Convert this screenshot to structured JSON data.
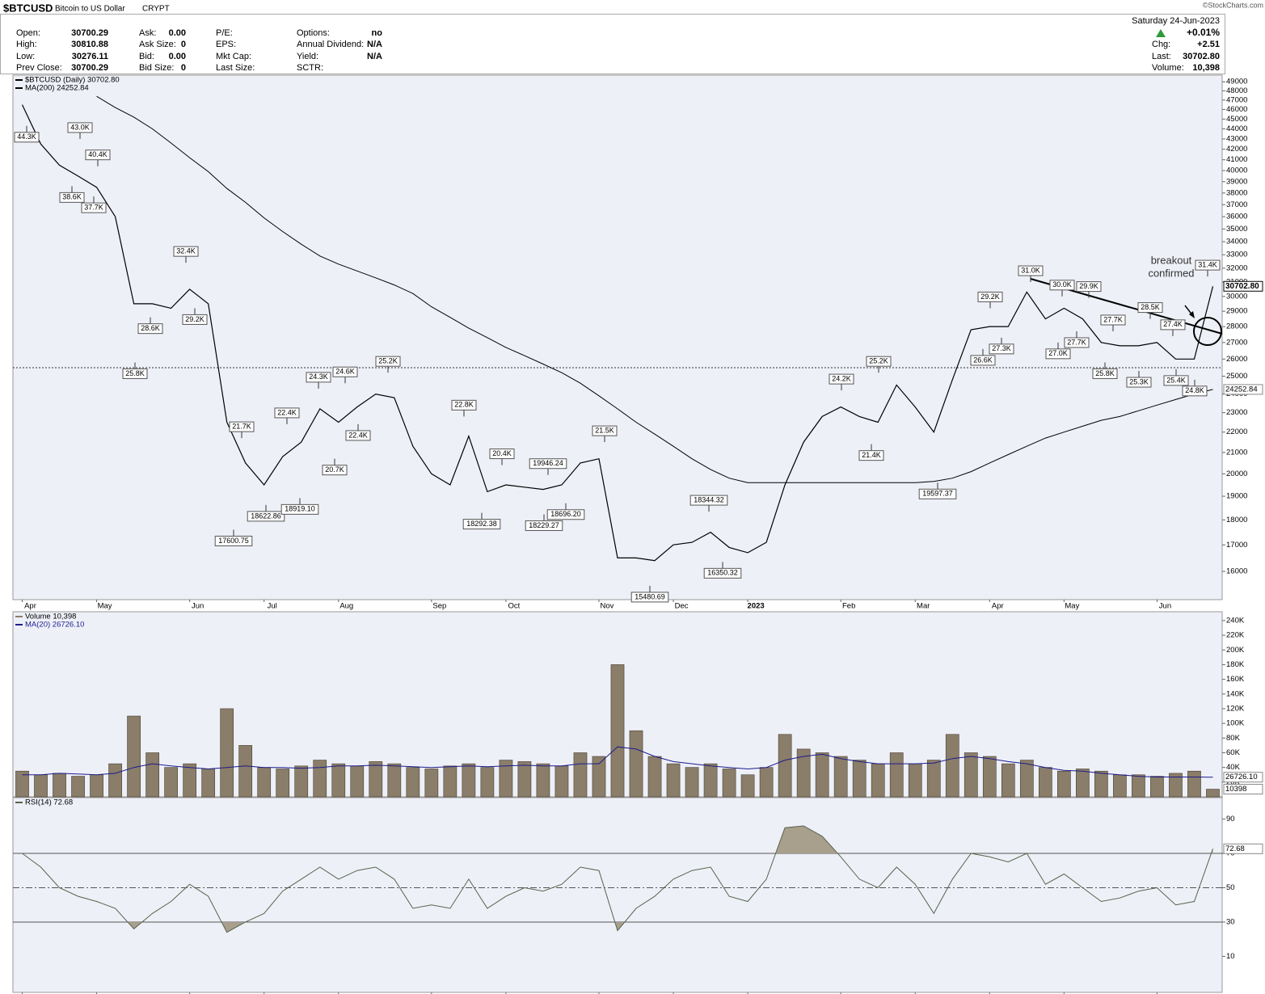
{
  "header": {
    "symbol": "$BTCUSD",
    "name": "Bitcoin to US Dollar",
    "exchange": "CRYPT",
    "columns": [
      [
        {
          "label": "Open:",
          "value": "30700.29"
        },
        {
          "label": "High:",
          "value": "30810.88"
        },
        {
          "label": "Low:",
          "value": "30276.11"
        },
        {
          "label": "Prev Close:",
          "value": "30700.29"
        }
      ],
      [
        {
          "label": "Ask:",
          "value": "0.00"
        },
        {
          "label": "Ask Size:",
          "value": "0"
        },
        {
          "label": "Bid:",
          "value": "0.00"
        },
        {
          "label": "Bid Size:",
          "value": "0"
        }
      ],
      [
        {
          "label": "P/E:"
        },
        {
          "label": "EPS:"
        },
        {
          "label": "Mkt Cap:"
        },
        {
          "label": "Last Size:"
        }
      ],
      [
        {
          "label": "Options:",
          "value": "no"
        },
        {
          "label": "Annual Dividend:",
          "value": "N/A"
        },
        {
          "label": "Yield:",
          "value": "N/A"
        },
        {
          "label": "SCTR:"
        }
      ]
    ],
    "date": "Saturday  24-Jun-2023",
    "change_pct": "+0.01%",
    "right": [
      {
        "label": "Chg:",
        "value": "+2.51"
      },
      {
        "label": "Last:",
        "value": "30702.80"
      },
      {
        "label": "Volume:",
        "value": "10,398"
      }
    ],
    "copyright": "©StockCharts.com"
  },
  "chart_data": [
    {
      "type": "line",
      "log": true,
      "categories": [
        "Apr",
        null,
        null,
        null,
        "May",
        null,
        null,
        null,
        null,
        "Jun",
        null,
        null,
        null,
        "Jul",
        null,
        null,
        null,
        "Aug",
        null,
        null,
        null,
        null,
        "Sep",
        null,
        null,
        null,
        "Oct",
        null,
        null,
        null,
        null,
        "Nov",
        null,
        null,
        null,
        "Dec",
        null,
        null,
        null,
        "2023",
        null,
        null,
        null,
        null,
        "Feb",
        null,
        null,
        null,
        "Mar",
        null,
        null,
        null,
        "Apr",
        null,
        null,
        null,
        "May",
        null,
        null,
        null,
        null,
        "Jun",
        null,
        null,
        null
      ],
      "ylim": [
        15000,
        49750
      ],
      "yticks": [
        16000,
        17000,
        18000,
        19000,
        20000,
        21000,
        22000,
        23000,
        24000,
        25000,
        26000,
        27000,
        28000,
        29000,
        30000,
        31000,
        32000,
        33000,
        34000,
        35000,
        36000,
        37000,
        38000,
        39000,
        40000,
        41000,
        42000,
        43000,
        44000,
        45000,
        46000,
        47000,
        48000,
        49000
      ],
      "series": [
        {
          "name": "$BTCUSD (Daily) 30702.80",
          "color": "#000000",
          "tag": "30702.80",
          "values": [
            46500,
            42500,
            40500,
            39500,
            38500,
            36000,
            29500,
            29500,
            29200,
            30500,
            29500,
            22500,
            20500,
            19500,
            20800,
            21500,
            23200,
            22500,
            23300,
            24000,
            23800,
            21300,
            20000,
            19500,
            21800,
            19200,
            19500,
            19400,
            19300,
            19500,
            20500,
            20700,
            16500,
            16500,
            16400,
            17000,
            17100,
            17500,
            16900,
            16700,
            17100,
            19500,
            21500,
            22800,
            23300,
            22800,
            22500,
            24500,
            23300,
            22000,
            24800,
            27800,
            28000,
            28000,
            30300,
            28500,
            29200,
            28500,
            27000,
            26800,
            26800,
            27000,
            26000,
            26000,
            30702.8
          ]
        },
        {
          "name": "MA(200) 24252.84",
          "color": "#000000",
          "tag": "24252.84",
          "values": [
            null,
            null,
            null,
            null,
            47400,
            46200,
            45200,
            44000,
            42600,
            41200,
            39900,
            38400,
            37200,
            35900,
            34800,
            33800,
            32900,
            32300,
            31800,
            31300,
            30800,
            30200,
            29300,
            28600,
            27900,
            27300,
            26700,
            26200,
            25700,
            25200,
            24600,
            23900,
            23200,
            22500,
            21900,
            21300,
            20700,
            20200,
            19800,
            19600,
            19600,
            19600,
            19600,
            19600,
            19600,
            19600,
            19600,
            19600,
            19600,
            19650,
            19800,
            20100,
            20500,
            20900,
            21300,
            21700,
            22000,
            22300,
            22600,
            22800,
            23100,
            23400,
            23700,
            24000,
            24252.84
          ]
        }
      ],
      "annotations": [
        {
          "label": "43.0K",
          "value": 43000
        },
        {
          "label": "40.4K",
          "value": 40400
        },
        {
          "label": "32.4K",
          "value": 32400
        },
        {
          "label": "21.7K",
          "value": 21700
        },
        {
          "label": "22.4K",
          "value": 22400
        },
        {
          "label": "24.3K",
          "value": 24300
        },
        {
          "label": "24.6K",
          "value": 24600
        },
        {
          "label": "25.2K",
          "value": 25200
        },
        {
          "label": "22.8K",
          "value": 22800
        },
        {
          "label": "20.4K",
          "value": 20400
        },
        {
          "label": "19946.24",
          "value": 19946.24
        },
        {
          "label": "21.5K",
          "value": 21500
        },
        {
          "label": "18344.32",
          "value": 18344.32
        },
        {
          "label": "24.2K",
          "value": 24200
        },
        {
          "label": "25.2K",
          "value": 25200
        },
        {
          "label": "29.2K",
          "value": 29200
        },
        {
          "label": "31.0K",
          "value": 31000
        },
        {
          "label": "30.0K",
          "value": 30000
        },
        {
          "label": "29.9K",
          "value": 29900
        },
        {
          "label": "27.7K",
          "value": 27700
        },
        {
          "label": "28.5K",
          "value": 28500
        },
        {
          "label": "27.4K",
          "value": 27400
        },
        {
          "label": "31.4K",
          "value": 31400
        },
        {
          "label": "44.3K",
          "value": 44300
        },
        {
          "label": "38.6K",
          "value": 38600
        },
        {
          "label": "37.7K",
          "value": 37700
        },
        {
          "label": "25.8K",
          "value": 25800
        },
        {
          "label": "28.6K",
          "value": 28600
        },
        {
          "label": "29.2K",
          "value": 29200
        },
        {
          "label": "17600.75",
          "value": 17600.75
        },
        {
          "label": "18622.86",
          "value": 18622.86
        },
        {
          "label": "18919.10",
          "value": 18919.1
        },
        {
          "label": "20.7K",
          "value": 20700
        },
        {
          "label": "22.4K",
          "value": 22400
        },
        {
          "label": "18292.38",
          "value": 18292.38
        },
        {
          "label": "18229.27",
          "value": 18229.27
        },
        {
          "label": "18696.20",
          "value": 18696.2
        },
        {
          "label": "15480.69",
          "value": 15480.69
        },
        {
          "label": "16350.32",
          "value": 16350.32
        },
        {
          "label": "21.4K",
          "value": 21400
        },
        {
          "label": "19597.37",
          "value": 19597.37
        },
        {
          "label": "26.6K",
          "value": 26600
        },
        {
          "label": "27.3K",
          "value": 27300
        },
        {
          "label": "27.0K",
          "value": 27000
        },
        {
          "label": "27.7K",
          "value": 27700
        },
        {
          "label": "25.8K",
          "value": 25800
        },
        {
          "label": "25.3K",
          "value": 25300
        },
        {
          "label": "25.4K",
          "value": 25400
        },
        {
          "label": "24.8K",
          "value": 24800
        }
      ],
      "note": [
        "breakout",
        "confirmed"
      ]
    },
    {
      "type": "bar",
      "ylim": [
        0,
        252000
      ],
      "yticks": [
        {
          "value": 20000,
          "label": "20K"
        },
        {
          "value": 40000,
          "label": "40K"
        },
        {
          "value": 60000,
          "label": "60K"
        },
        {
          "value": 80000,
          "label": "80K"
        },
        {
          "value": 100000,
          "label": "100K"
        },
        {
          "value": 120000,
          "label": "120K"
        },
        {
          "value": 140000,
          "label": "140K"
        },
        {
          "value": 160000,
          "label": "160K"
        },
        {
          "value": 180000,
          "label": "180K"
        },
        {
          "value": 200000,
          "label": "200K"
        },
        {
          "value": 220000,
          "label": "220K"
        },
        {
          "value": 240000,
          "label": "240K"
        }
      ],
      "series": [
        {
          "name": "Volume 10,398",
          "color": "#8a7d69",
          "tag": "10398",
          "values": [
            35000,
            30000,
            32000,
            28000,
            30000,
            45000,
            110000,
            60000,
            40000,
            45000,
            38000,
            120000,
            70000,
            40000,
            38000,
            42000,
            50000,
            45000,
            42000,
            48000,
            45000,
            40000,
            38000,
            42000,
            45000,
            40000,
            50000,
            48000,
            45000,
            42000,
            60000,
            55000,
            180000,
            90000,
            55000,
            45000,
            40000,
            45000,
            38000,
            30000,
            40000,
            85000,
            65000,
            60000,
            55000,
            50000,
            45000,
            60000,
            45000,
            50000,
            85000,
            60000,
            55000,
            45000,
            50000,
            40000,
            35000,
            38000,
            35000,
            30000,
            30000,
            28000,
            32000,
            35000,
            10398
          ]
        },
        {
          "name": "MA(20) 26726.10",
          "color": "#1c1c8c",
          "type": "line",
          "tag": "26726.10",
          "values": [
            30000,
            30000,
            32000,
            31000,
            30000,
            32000,
            40000,
            45000,
            42000,
            40000,
            38000,
            40000,
            42000,
            40000,
            40000,
            39000,
            40000,
            42000,
            42000,
            43000,
            42000,
            41000,
            40000,
            41000,
            42000,
            41000,
            42000,
            43000,
            42000,
            42000,
            45000,
            45000,
            68000,
            65000,
            55000,
            48000,
            45000,
            42000,
            40000,
            38000,
            40000,
            50000,
            55000,
            58000,
            52000,
            48000,
            45000,
            45000,
            45000,
            46000,
            52000,
            55000,
            52000,
            48000,
            45000,
            40000,
            36000,
            35000,
            32000,
            30000,
            28000,
            27000,
            27000,
            27000,
            26726.1
          ]
        }
      ]
    },
    {
      "type": "line",
      "categories": [
        "Apr",
        null,
        null,
        null,
        "May",
        null,
        null,
        null,
        null,
        "Jun",
        null,
        null,
        null,
        "Jul",
        null,
        null,
        null,
        "Aug",
        null,
        null,
        null,
        null,
        "Sep",
        null,
        null,
        null,
        "Oct",
        null,
        null,
        null,
        null,
        "Nov",
        null,
        null,
        null,
        "Dec",
        null,
        null,
        null,
        "2023",
        null,
        null,
        null,
        null,
        "Feb",
        null,
        null,
        null,
        "Mar",
        null,
        null,
        null,
        "Apr",
        null,
        null,
        null,
        "May",
        null,
        null,
        null,
        null,
        "Jun",
        null,
        null,
        null
      ],
      "ylim": [
        -11,
        102.5
      ],
      "yticks": [
        10,
        30,
        50,
        70,
        90
      ],
      "bands": [
        30,
        70
      ],
      "series": [
        {
          "name": "RSI(14) 72.68",
          "color": "#56634a",
          "tag": "72.68",
          "values": [
            70,
            62,
            50,
            45,
            42,
            38,
            26,
            35,
            42,
            52,
            45,
            24,
            30,
            35,
            48,
            55,
            62,
            55,
            60,
            62,
            55,
            38,
            40,
            38,
            55,
            38,
            45,
            50,
            48,
            52,
            62,
            60,
            25,
            38,
            45,
            55,
            60,
            62,
            45,
            42,
            55,
            85,
            86,
            80,
            68,
            55,
            50,
            62,
            52,
            35,
            55,
            70,
            68,
            65,
            70,
            52,
            58,
            50,
            42,
            44,
            48,
            50,
            40,
            42,
            72.68
          ]
        }
      ]
    }
  ]
}
